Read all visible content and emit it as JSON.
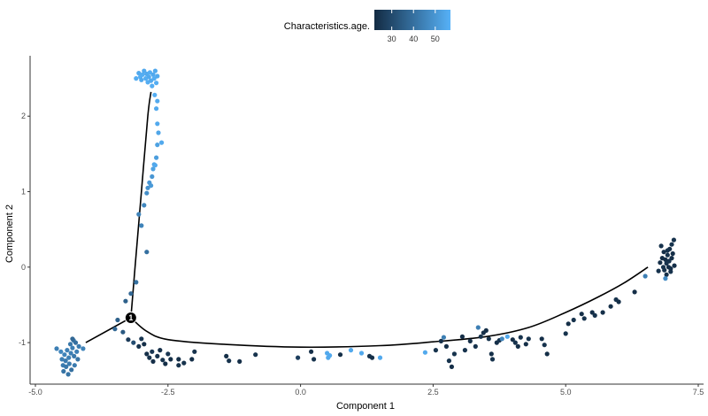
{
  "chart_data": {
    "type": "scatter",
    "xlabel": "Component 1",
    "ylabel": "Component 2",
    "xlim": [
      -5.1,
      7.6
    ],
    "ylim": [
      -1.55,
      2.8
    ],
    "x_ticks": [
      -5.0,
      -2.5,
      0.0,
      2.5,
      5.0,
      7.5
    ],
    "x_tick_labels": [
      "-5.0",
      "-2.5",
      "0.0",
      "2.5",
      "5.0",
      "7.5"
    ],
    "y_ticks": [
      -1,
      0,
      1,
      2
    ],
    "y_tick_labels": [
      "-1",
      "0",
      "1",
      "2"
    ],
    "grid": false,
    "legend": {
      "title": "Characteristics.age.",
      "position": "top",
      "ticks": [
        30,
        40,
        50
      ],
      "range": [
        22,
        57
      ],
      "colors": [
        "#132b43",
        "#56b1f7"
      ]
    },
    "branch_point": {
      "x": -3.2,
      "y": -0.67,
      "label": "1"
    },
    "trajectory": [
      [
        [
          -4.05,
          -1.0
        ],
        [
          -3.2,
          -0.67
        ]
      ],
      [
        [
          -3.2,
          -0.67
        ],
        [
          -3.12,
          0.0
        ],
        [
          -3.0,
          1.0
        ],
        [
          -2.88,
          2.0
        ],
        [
          -2.82,
          2.32
        ]
      ],
      [
        [
          -3.2,
          -0.67
        ],
        [
          -2.9,
          -0.85
        ],
        [
          -2.5,
          -0.96
        ],
        [
          -1.5,
          -1.02
        ],
        [
          0.0,
          -1.06
        ],
        [
          1.5,
          -1.04
        ],
        [
          2.5,
          -0.99
        ],
        [
          3.5,
          -0.92
        ],
        [
          4.3,
          -0.8
        ],
        [
          5.0,
          -0.6
        ],
        [
          5.6,
          -0.4
        ],
        [
          6.1,
          -0.21
        ],
        [
          6.55,
          0.0
        ]
      ]
    ],
    "points": [
      {
        "x": -4.6,
        "y": -1.08,
        "age": 44
      },
      {
        "x": -4.52,
        "y": -1.12,
        "age": 46
      },
      {
        "x": -4.5,
        "y": -1.22,
        "age": 44
      },
      {
        "x": -4.48,
        "y": -1.3,
        "age": 43
      },
      {
        "x": -4.47,
        "y": -1.38,
        "age": 41
      },
      {
        "x": -4.45,
        "y": -1.16,
        "age": 45
      },
      {
        "x": -4.43,
        "y": -1.24,
        "age": 43
      },
      {
        "x": -4.42,
        "y": -1.32,
        "age": 42
      },
      {
        "x": -4.4,
        "y": -1.1,
        "age": 44
      },
      {
        "x": -4.38,
        "y": -1.42,
        "age": 41
      },
      {
        "x": -4.37,
        "y": -1.2,
        "age": 44
      },
      {
        "x": -4.36,
        "y": -1.28,
        "age": 43
      },
      {
        "x": -4.34,
        "y": -1.02,
        "age": 42
      },
      {
        "x": -4.33,
        "y": -1.14,
        "age": 44
      },
      {
        "x": -4.32,
        "y": -1.36,
        "age": 40
      },
      {
        "x": -4.3,
        "y": -1.07,
        "age": 44
      },
      {
        "x": -4.28,
        "y": -0.97,
        "age": 41
      },
      {
        "x": -4.27,
        "y": -1.18,
        "age": 42
      },
      {
        "x": -4.26,
        "y": -1.3,
        "age": 43
      },
      {
        "x": -4.24,
        "y": -1.0,
        "age": 40
      },
      {
        "x": -4.22,
        "y": -1.12,
        "age": 44
      },
      {
        "x": -4.2,
        "y": -1.22,
        "age": 41
      },
      {
        "x": -4.18,
        "y": -1.05,
        "age": 43
      },
      {
        "x": -4.3,
        "y": -0.95,
        "age": 38
      },
      {
        "x": -4.1,
        "y": -1.08,
        "age": 45
      },
      {
        "x": -3.5,
        "y": -0.82,
        "age": 38
      },
      {
        "x": -3.45,
        "y": -0.7,
        "age": 36
      },
      {
        "x": -3.35,
        "y": -0.86,
        "age": 34
      },
      {
        "x": -3.25,
        "y": -0.96,
        "age": 26
      },
      {
        "x": -3.15,
        "y": -1.0,
        "age": 31
      },
      {
        "x": -3.05,
        "y": -1.05,
        "age": 24
      },
      {
        "x": -3.0,
        "y": -0.95,
        "age": 25
      },
      {
        "x": -2.95,
        "y": -1.02,
        "age": 23
      },
      {
        "x": -2.9,
        "y": -1.15,
        "age": 23
      },
      {
        "x": -2.85,
        "y": -1.2,
        "age": 24
      },
      {
        "x": -2.8,
        "y": -1.12,
        "age": 25
      },
      {
        "x": -2.78,
        "y": -1.25,
        "age": 23
      },
      {
        "x": -2.7,
        "y": -1.18,
        "age": 24
      },
      {
        "x": -2.65,
        "y": -1.1,
        "age": 23
      },
      {
        "x": -2.6,
        "y": -1.23,
        "age": 24
      },
      {
        "x": -2.55,
        "y": -1.28,
        "age": 23
      },
      {
        "x": -2.5,
        "y": -1.15,
        "age": 25
      },
      {
        "x": -2.45,
        "y": -1.22,
        "age": 23
      },
      {
        "x": -2.3,
        "y": -1.3,
        "age": 24
      },
      {
        "x": -2.3,
        "y": -1.22,
        "age": 23
      },
      {
        "x": -2.2,
        "y": -1.27,
        "age": 24
      },
      {
        "x": -2.05,
        "y": -1.22,
        "age": 23
      },
      {
        "x": -2.0,
        "y": -1.12,
        "age": 24
      },
      {
        "x": -1.4,
        "y": -1.18,
        "age": 23
      },
      {
        "x": -1.35,
        "y": -1.24,
        "age": 24
      },
      {
        "x": -1.15,
        "y": -1.25,
        "age": 23
      },
      {
        "x": -0.85,
        "y": -1.16,
        "age": 24
      },
      {
        "x": -0.05,
        "y": -1.2,
        "age": 27
      },
      {
        "x": 0.2,
        "y": -1.12,
        "age": 23
      },
      {
        "x": 0.25,
        "y": -1.22,
        "age": 24
      },
      {
        "x": 0.5,
        "y": -1.14,
        "age": 55
      },
      {
        "x": 0.52,
        "y": -1.2,
        "age": 55
      },
      {
        "x": 0.55,
        "y": -1.17,
        "age": 55
      },
      {
        "x": 0.75,
        "y": -1.16,
        "age": 23
      },
      {
        "x": 0.95,
        "y": -1.1,
        "age": 55
      },
      {
        "x": 1.15,
        "y": -1.14,
        "age": 55
      },
      {
        "x": 1.3,
        "y": -1.18,
        "age": 24
      },
      {
        "x": 1.35,
        "y": -1.2,
        "age": 23
      },
      {
        "x": 1.5,
        "y": -1.2,
        "age": 55
      },
      {
        "x": 2.35,
        "y": -1.13,
        "age": 55
      },
      {
        "x": 2.55,
        "y": -1.1,
        "age": 24
      },
      {
        "x": 2.65,
        "y": -0.98,
        "age": 23
      },
      {
        "x": 2.7,
        "y": -0.93,
        "age": 44
      },
      {
        "x": 2.75,
        "y": -1.05,
        "age": 23
      },
      {
        "x": 2.8,
        "y": -1.24,
        "age": 24
      },
      {
        "x": 2.85,
        "y": -1.32,
        "age": 23
      },
      {
        "x": 2.9,
        "y": -1.15,
        "age": 24
      },
      {
        "x": 3.05,
        "y": -0.92,
        "age": 23
      },
      {
        "x": 3.1,
        "y": -1.1,
        "age": 24
      },
      {
        "x": 3.2,
        "y": -0.98,
        "age": 23
      },
      {
        "x": 3.3,
        "y": -1.05,
        "age": 24
      },
      {
        "x": 3.35,
        "y": -0.8,
        "age": 44
      },
      {
        "x": 3.4,
        "y": -0.92,
        "age": 24
      },
      {
        "x": 3.45,
        "y": -0.87,
        "age": 23
      },
      {
        "x": 3.5,
        "y": -0.84,
        "age": 23
      },
      {
        "x": 3.55,
        "y": -0.95,
        "age": 24
      },
      {
        "x": 3.6,
        "y": -1.15,
        "age": 23
      },
      {
        "x": 3.62,
        "y": -1.22,
        "age": 24
      },
      {
        "x": 3.7,
        "y": -1.0,
        "age": 23
      },
      {
        "x": 3.75,
        "y": -0.97,
        "age": 24
      },
      {
        "x": 3.8,
        "y": -0.95,
        "age": 46
      },
      {
        "x": 3.9,
        "y": -0.92,
        "age": 55
      },
      {
        "x": 4.0,
        "y": -0.96,
        "age": 23
      },
      {
        "x": 4.05,
        "y": -1.0,
        "age": 24
      },
      {
        "x": 4.1,
        "y": -1.05,
        "age": 23
      },
      {
        "x": 4.15,
        "y": -0.93,
        "age": 24
      },
      {
        "x": 4.25,
        "y": -1.02,
        "age": 23
      },
      {
        "x": 4.3,
        "y": -0.95,
        "age": 24
      },
      {
        "x": 4.55,
        "y": -0.95,
        "age": 23
      },
      {
        "x": 4.6,
        "y": -1.03,
        "age": 24
      },
      {
        "x": 4.65,
        "y": -1.15,
        "age": 23
      },
      {
        "x": 5.0,
        "y": -0.88,
        "age": 24
      },
      {
        "x": 5.05,
        "y": -0.75,
        "age": 23
      },
      {
        "x": 5.15,
        "y": -0.7,
        "age": 24
      },
      {
        "x": 5.3,
        "y": -0.62,
        "age": 23
      },
      {
        "x": 5.35,
        "y": -0.68,
        "age": 24
      },
      {
        "x": 5.5,
        "y": -0.6,
        "age": 23
      },
      {
        "x": 5.55,
        "y": -0.64,
        "age": 24
      },
      {
        "x": 5.7,
        "y": -0.6,
        "age": 23
      },
      {
        "x": 5.85,
        "y": -0.52,
        "age": 23
      },
      {
        "x": 5.95,
        "y": -0.43,
        "age": 24
      },
      {
        "x": 6.0,
        "y": -0.46,
        "age": 23
      },
      {
        "x": 6.3,
        "y": -0.33,
        "age": 23
      },
      {
        "x": 6.5,
        "y": -0.12,
        "age": 44
      },
      {
        "x": 6.8,
        "y": 0.28,
        "age": 24
      },
      {
        "x": 6.82,
        "y": 0.12,
        "age": 23
      },
      {
        "x": 6.84,
        "y": 0.0,
        "age": 24
      },
      {
        "x": 6.85,
        "y": 0.2,
        "age": 23
      },
      {
        "x": 6.86,
        "y": -0.04,
        "age": 24
      },
      {
        "x": 6.88,
        "y": 0.1,
        "age": 23
      },
      {
        "x": 6.9,
        "y": 0.05,
        "age": 24
      },
      {
        "x": 6.9,
        "y": -0.1,
        "age": 23
      },
      {
        "x": 6.92,
        "y": 0.16,
        "age": 24
      },
      {
        "x": 6.94,
        "y": 0.0,
        "age": 23
      },
      {
        "x": 6.95,
        "y": 0.08,
        "age": 24
      },
      {
        "x": 6.96,
        "y": 0.24,
        "age": 23
      },
      {
        "x": 6.98,
        "y": -0.06,
        "age": 24
      },
      {
        "x": 7.0,
        "y": 0.12,
        "age": 23
      },
      {
        "x": 7.0,
        "y": 0.3,
        "age": 24
      },
      {
        "x": 7.02,
        "y": 0.18,
        "age": 23
      },
      {
        "x": 7.04,
        "y": 0.36,
        "age": 24
      },
      {
        "x": 7.05,
        "y": 0.02,
        "age": 23
      },
      {
        "x": 6.75,
        "y": -0.05,
        "age": 24
      },
      {
        "x": 6.78,
        "y": 0.06,
        "age": 23
      },
      {
        "x": 6.92,
        "y": 0.22,
        "age": 24
      },
      {
        "x": 6.98,
        "y": -0.02,
        "age": 23
      },
      {
        "x": 6.88,
        "y": -0.15,
        "age": 47
      },
      {
        "x": -3.3,
        "y": -0.45,
        "age": 36
      },
      {
        "x": -3.2,
        "y": -0.35,
        "age": 38
      },
      {
        "x": -3.1,
        "y": -0.2,
        "age": 40
      },
      {
        "x": -2.9,
        "y": 0.2,
        "age": 40
      },
      {
        "x": -3.0,
        "y": 0.55,
        "age": 45
      },
      {
        "x": -3.05,
        "y": 0.7,
        "age": 45
      },
      {
        "x": -2.95,
        "y": 0.82,
        "age": 46
      },
      {
        "x": -2.9,
        "y": 0.98,
        "age": 48
      },
      {
        "x": -2.88,
        "y": 1.05,
        "age": 49
      },
      {
        "x": -2.85,
        "y": 1.12,
        "age": 50
      },
      {
        "x": -2.82,
        "y": 1.08,
        "age": 51
      },
      {
        "x": -2.8,
        "y": 1.2,
        "age": 50
      },
      {
        "x": -2.78,
        "y": 1.3,
        "age": 53
      },
      {
        "x": -2.76,
        "y": 1.36,
        "age": 54
      },
      {
        "x": -2.74,
        "y": 1.35,
        "age": 55
      },
      {
        "x": -2.72,
        "y": 1.45,
        "age": 52
      },
      {
        "x": -2.7,
        "y": 1.62,
        "age": 53
      },
      {
        "x": -2.62,
        "y": 1.65,
        "age": 55
      },
      {
        "x": -2.68,
        "y": 1.78,
        "age": 54
      },
      {
        "x": -2.7,
        "y": 1.9,
        "age": 55
      },
      {
        "x": -2.72,
        "y": 2.1,
        "age": 55
      },
      {
        "x": -2.7,
        "y": 2.2,
        "age": 55
      },
      {
        "x": -2.75,
        "y": 2.28,
        "age": 56
      },
      {
        "x": -3.1,
        "y": 2.5,
        "age": 56
      },
      {
        "x": -3.05,
        "y": 2.57,
        "age": 55
      },
      {
        "x": -3.02,
        "y": 2.52,
        "age": 56
      },
      {
        "x": -3.0,
        "y": 2.48,
        "age": 55
      },
      {
        "x": -2.98,
        "y": 2.55,
        "age": 56
      },
      {
        "x": -2.95,
        "y": 2.6,
        "age": 55
      },
      {
        "x": -2.92,
        "y": 2.5,
        "age": 56
      },
      {
        "x": -2.9,
        "y": 2.56,
        "age": 55
      },
      {
        "x": -2.88,
        "y": 2.45,
        "age": 56
      },
      {
        "x": -2.86,
        "y": 2.52,
        "age": 55
      },
      {
        "x": -2.84,
        "y": 2.58,
        "age": 56
      },
      {
        "x": -2.82,
        "y": 2.47,
        "age": 55
      },
      {
        "x": -2.8,
        "y": 2.4,
        "age": 56
      },
      {
        "x": -2.78,
        "y": 2.55,
        "age": 55
      },
      {
        "x": -2.76,
        "y": 2.5,
        "age": 56
      },
      {
        "x": -2.74,
        "y": 2.6,
        "age": 55
      },
      {
        "x": -2.72,
        "y": 2.44,
        "age": 56
      },
      {
        "x": -2.7,
        "y": 2.53,
        "age": 55
      }
    ]
  }
}
